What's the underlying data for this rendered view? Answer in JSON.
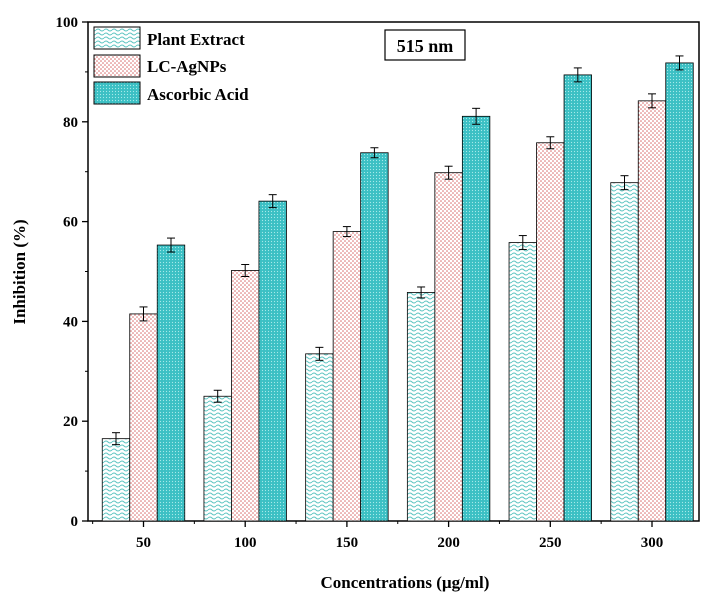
{
  "chart_data": {
    "type": "bar",
    "title": "",
    "annotation": "515 nm",
    "xlabel": "Concentrations (µg/ml)",
    "ylabel": "Inhibition (%)",
    "ylim": [
      0,
      100
    ],
    "yticks": [
      0,
      20,
      40,
      60,
      80,
      100
    ],
    "categories": [
      "50",
      "100",
      "150",
      "200",
      "250",
      "300"
    ],
    "series": [
      {
        "name": "Plant Extract",
        "values": [
          16.5,
          25.0,
          33.5,
          45.8,
          55.8,
          67.8
        ],
        "errors": [
          1.2,
          1.2,
          1.3,
          1.1,
          1.4,
          1.4
        ],
        "color": "#5ec5c2",
        "pattern": "wave"
      },
      {
        "name": "LC-AgNPs",
        "values": [
          41.5,
          50.2,
          58.0,
          69.8,
          75.8,
          84.2
        ],
        "errors": [
          1.4,
          1.2,
          1.0,
          1.3,
          1.2,
          1.4
        ],
        "color": "#e08080",
        "pattern": "dots"
      },
      {
        "name": "Ascorbic Acid",
        "values": [
          55.3,
          64.1,
          73.8,
          81.1,
          89.4,
          91.8
        ],
        "errors": [
          1.4,
          1.3,
          1.0,
          1.6,
          1.4,
          1.4
        ],
        "color": "#3cc0c4",
        "pattern": "dense"
      }
    ],
    "legend_position": "top-left",
    "grid": false
  }
}
